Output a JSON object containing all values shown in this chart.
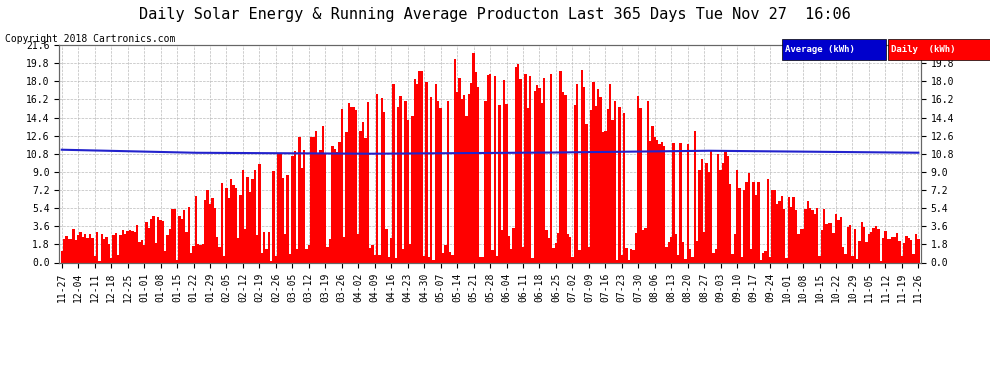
{
  "title": "Daily Solar Energy & Running Average Producton Last 365 Days Tue Nov 27  16:06",
  "copyright": "Copyright 2018 Cartronics.com",
  "yticks": [
    0.0,
    1.8,
    3.6,
    5.4,
    7.2,
    9.0,
    10.8,
    12.6,
    14.4,
    16.2,
    18.0,
    19.8,
    21.6
  ],
  "ylim": [
    0,
    21.6
  ],
  "bar_color": "#FF0000",
  "avg_color": "#2222CC",
  "bg_color": "#FFFFFF",
  "grid_color": "#BBBBBB",
  "legend_avg_bg": "#0000CC",
  "legend_daily_bg": "#FF0000",
  "legend_avg_text": "Average (kWh)",
  "legend_daily_text": "Daily  (kWh)",
  "title_fontsize": 11,
  "copyright_fontsize": 7,
  "tick_fontsize": 7
}
